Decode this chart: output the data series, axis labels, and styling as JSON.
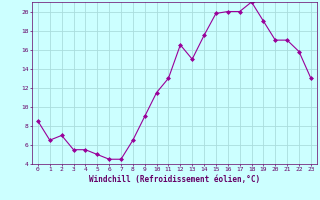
{
  "x": [
    0,
    1,
    2,
    3,
    4,
    5,
    6,
    7,
    8,
    9,
    10,
    11,
    12,
    13,
    14,
    15,
    16,
    17,
    18,
    19,
    20,
    21,
    22,
    23
  ],
  "y": [
    8.5,
    6.5,
    7.0,
    5.5,
    5.5,
    5.0,
    4.5,
    4.5,
    6.5,
    9.0,
    11.5,
    13.0,
    16.5,
    15.0,
    17.5,
    19.8,
    20.0,
    20.0,
    21.0,
    19.0,
    17.0,
    17.0,
    15.8,
    13.0
  ],
  "line_color": "#990099",
  "marker": "D",
  "marker_size": 2.0,
  "bg_color": "#ccffff",
  "grid_color": "#aadddd",
  "xlabel": "Windchill (Refroidissement éolien,°C)",
  "xlabel_color": "#660066",
  "tick_color": "#660066",
  "ylim": [
    4,
    21
  ],
  "yticks": [
    4,
    6,
    8,
    10,
    12,
    14,
    16,
    18,
    20
  ],
  "xlim": [
    -0.5,
    23.5
  ],
  "xticks": [
    0,
    1,
    2,
    3,
    4,
    5,
    6,
    7,
    8,
    9,
    10,
    11,
    12,
    13,
    14,
    15,
    16,
    17,
    18,
    19,
    20,
    21,
    22,
    23
  ]
}
